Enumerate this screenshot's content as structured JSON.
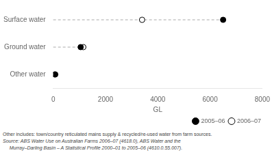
{
  "chart_data": {
    "type": "dot",
    "categories": [
      "Surface water",
      "Ground water",
      "Other water"
    ],
    "series": [
      {
        "name": "2005–06",
        "color": "#000000",
        "marker": "circle",
        "values": [
          6500,
          1050,
          60
        ]
      },
      {
        "name": "2006–07",
        "color": "#ffffff",
        "marker": "circle",
        "values": [
          3400,
          1150,
          80
        ]
      }
    ],
    "xlabel": "GL",
    "xlim": [
      0,
      8000
    ],
    "xticks": [
      0,
      2000,
      4000,
      6000,
      8000
    ],
    "legend": "lower right",
    "grid": false,
    "annotations": [
      "Other includes: town/country reticulated mains supply & recycled/re-used water from farm sources.",
      "Source: ABS Water Use on Australian Farms 2006–07 (4618.0), ABS Water and the",
      "     Murray–Darling Basin – A Statistical Profile 2000–01 to 2005–06 (4610.0.55.007)."
    ]
  }
}
